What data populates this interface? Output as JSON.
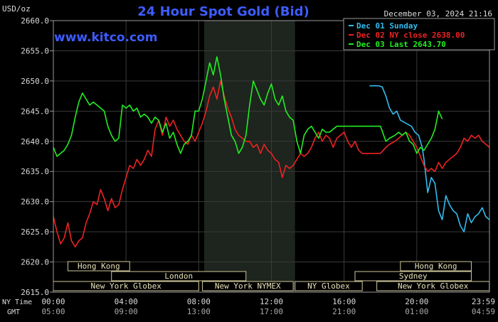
{
  "chart_data": {
    "type": "line",
    "title": "24 Hour Spot Gold (Bid)",
    "unit_label": "USD/oz",
    "timestamp": "December 03, 2024 21:16",
    "watermark": "www.kitco.com",
    "ylim": [
      2615.0,
      2660.0
    ],
    "y_ticks": [
      "2660.0",
      "2655.0",
      "2650.0",
      "2645.0",
      "2640.0",
      "2635.0",
      "2630.0",
      "2625.0",
      "2620.0",
      "2615.0"
    ],
    "x_range_hours": [
      0,
      24
    ],
    "x_ticks": [
      {
        "h": 0,
        "ny": "00:00",
        "gmt": "05:00"
      },
      {
        "h": 4,
        "ny": "04:00",
        "gmt": "09:00"
      },
      {
        "h": 8,
        "ny": "08:00",
        "gmt": "13:00"
      },
      {
        "h": 12,
        "ny": "12:00",
        "gmt": "17:00"
      },
      {
        "h": 16,
        "ny": "16:00",
        "gmt": "21:00"
      },
      {
        "h": 20,
        "ny": "20:00",
        "gmt": "01:00"
      },
      {
        "h": 24,
        "ny": "23:59",
        "gmt": "04:59"
      }
    ],
    "x_row_labels": {
      "ny": "NY Time",
      "gmt": "GMT"
    },
    "highlight_band_hours": [
      8.3,
      13.3
    ],
    "grid": true,
    "legend_position": "top-right",
    "legend": [
      {
        "label": "Dec 01 Sunday",
        "color": "#33bbee"
      },
      {
        "label": "Dec 02 NY close 2638.00",
        "color": "#ee2222"
      },
      {
        "label": "Dec 03 Last 2643.70",
        "color": "#22ee22"
      }
    ],
    "sessions": [
      {
        "label": "Hong Kong",
        "start": 0.8,
        "end": 4.2,
        "row": 0
      },
      {
        "label": "Hong Kong",
        "start": 19.1,
        "end": 23.0,
        "row": 0
      },
      {
        "label": "London",
        "start": 3.2,
        "end": 10.6,
        "row": 1
      },
      {
        "label": "Sydney",
        "start": 16.6,
        "end": 23.0,
        "row": 1
      },
      {
        "label": "New York Globex",
        "start": 0.0,
        "end": 8.0,
        "row": 2
      },
      {
        "label": "New York NYMEX",
        "start": 8.2,
        "end": 13.2,
        "row": 2
      },
      {
        "label": "NY Globex",
        "start": 13.3,
        "end": 17.0,
        "row": 2
      },
      {
        "label": "New York Globex",
        "start": 17.8,
        "end": 23.99,
        "row": 2
      }
    ],
    "series": [
      {
        "name": "Dec 01 Sunday",
        "color": "#33bbee",
        "x": [
          17.4,
          17.9,
          18.1,
          18.3,
          18.5,
          18.7,
          18.9,
          19.1,
          19.4,
          19.7,
          19.9,
          20.1,
          20.3,
          20.4,
          20.6,
          20.8,
          21.0,
          21.2,
          21.4,
          21.6,
          21.8,
          22.0,
          22.2,
          22.4,
          22.6,
          22.8,
          23.0,
          23.2,
          23.4,
          23.6,
          23.8,
          24.0
        ],
        "y": [
          2649.2,
          2649.2,
          2649.0,
          2647.5,
          2645.5,
          2644.5,
          2645.0,
          2643.5,
          2643.0,
          2642.5,
          2641.5,
          2641.0,
          2639.0,
          2637.0,
          2631.5,
          2634.0,
          2633.0,
          2628.5,
          2627.0,
          2631.0,
          2629.5,
          2628.5,
          2628.0,
          2626.0,
          2625.0,
          2628.0,
          2626.5,
          2627.5,
          2628.0,
          2629.0,
          2627.5,
          2627.0
        ]
      },
      {
        "name": "Dec 02 NY close 2638.00",
        "color": "#ee2222",
        "x": [
          0.0,
          0.2,
          0.4,
          0.6,
          0.8,
          1.0,
          1.2,
          1.4,
          1.6,
          1.8,
          2.0,
          2.2,
          2.4,
          2.6,
          2.8,
          3.0,
          3.2,
          3.4,
          3.6,
          3.8,
          4.0,
          4.2,
          4.4,
          4.6,
          4.8,
          5.0,
          5.2,
          5.4,
          5.6,
          5.8,
          6.0,
          6.2,
          6.4,
          6.6,
          6.8,
          7.0,
          7.2,
          7.4,
          7.6,
          7.8,
          8.0,
          8.2,
          8.4,
          8.6,
          8.8,
          9.0,
          9.2,
          9.4,
          9.6,
          9.8,
          10.0,
          10.2,
          10.4,
          10.6,
          10.8,
          11.0,
          11.2,
          11.4,
          11.6,
          11.8,
          12.0,
          12.2,
          12.4,
          12.6,
          12.8,
          13.0,
          13.2,
          13.4,
          13.6,
          13.8,
          14.0,
          14.2,
          14.4,
          14.6,
          14.8,
          15.0,
          15.2,
          15.4,
          15.6,
          15.8,
          16.0,
          16.2,
          16.4,
          16.6,
          16.8,
          17.0,
          17.5,
          18.0,
          18.3,
          18.5,
          18.8,
          19.0,
          19.2,
          19.4,
          19.6,
          19.8,
          20.0,
          20.2,
          20.4,
          20.6,
          20.8,
          21.0,
          21.2,
          21.4,
          21.6,
          21.8,
          22.0,
          22.2,
          22.4,
          22.6,
          22.8,
          23.0,
          23.2,
          23.4,
          23.6,
          23.8,
          24.0
        ],
        "y": [
          2627.5,
          2625.0,
          2623.0,
          2624.0,
          2626.5,
          2623.5,
          2622.5,
          2623.5,
          2624.0,
          2626.5,
          2628.0,
          2630.0,
          2629.5,
          2632.0,
          2630.5,
          2628.5,
          2630.5,
          2629.0,
          2629.5,
          2632.0,
          2634.0,
          2636.0,
          2635.5,
          2637.0,
          2636.0,
          2637.0,
          2638.5,
          2637.5,
          2642.0,
          2643.5,
          2641.0,
          2644.0,
          2642.5,
          2643.5,
          2642.0,
          2641.0,
          2640.0,
          2639.5,
          2641.0,
          2640.0,
          2641.5,
          2643.0,
          2645.0,
          2647.5,
          2649.0,
          2647.0,
          2650.0,
          2647.5,
          2645.5,
          2644.0,
          2642.0,
          2641.0,
          2640.5,
          2640.0,
          2640.0,
          2639.0,
          2639.5,
          2638.0,
          2639.5,
          2638.5,
          2638.0,
          2637.0,
          2636.5,
          2634.0,
          2636.0,
          2635.5,
          2636.0,
          2637.0,
          2638.0,
          2637.5,
          2638.0,
          2639.0,
          2640.5,
          2641.5,
          2640.0,
          2641.0,
          2640.5,
          2639.0,
          2640.5,
          2641.0,
          2641.5,
          2640.0,
          2639.0,
          2640.0,
          2638.5,
          2638.0,
          2638.0,
          2638.0,
          2639.0,
          2639.5,
          2640.0,
          2640.5,
          2641.0,
          2641.5,
          2641.0,
          2640.0,
          2639.0,
          2637.5,
          2636.0,
          2635.0,
          2635.5,
          2635.0,
          2636.5,
          2635.5,
          2636.5,
          2637.0,
          2637.5,
          2638.0,
          2639.0,
          2640.5,
          2640.0,
          2641.0,
          2640.5,
          2641.0,
          2640.0,
          2639.5,
          2639.0
        ]
      },
      {
        "name": "Dec 03 Last 2643.70",
        "color": "#22ee22",
        "x": [
          0.0,
          0.2,
          0.4,
          0.6,
          0.8,
          1.0,
          1.2,
          1.4,
          1.6,
          1.8,
          2.0,
          2.2,
          2.4,
          2.6,
          2.8,
          3.0,
          3.2,
          3.4,
          3.6,
          3.8,
          4.0,
          4.2,
          4.4,
          4.6,
          4.8,
          5.0,
          5.2,
          5.4,
          5.6,
          5.8,
          6.0,
          6.2,
          6.4,
          6.6,
          6.8,
          7.0,
          7.2,
          7.4,
          7.6,
          7.8,
          8.0,
          8.2,
          8.4,
          8.6,
          8.8,
          9.0,
          9.2,
          9.4,
          9.6,
          9.8,
          10.0,
          10.2,
          10.4,
          10.6,
          10.8,
          11.0,
          11.2,
          11.4,
          11.6,
          11.8,
          12.0,
          12.2,
          12.4,
          12.6,
          12.8,
          13.0,
          13.2,
          13.4,
          13.6,
          13.8,
          14.0,
          14.2,
          14.4,
          14.6,
          14.8,
          15.0,
          15.2,
          15.4,
          15.6,
          15.8,
          16.0,
          16.2,
          16.4,
          16.6,
          16.8,
          17.0,
          17.5,
          18.0,
          18.3,
          18.5,
          18.8,
          19.0,
          19.2,
          19.4,
          19.6,
          19.8,
          20.0,
          20.2,
          20.4,
          20.6,
          20.8,
          21.0,
          21.2,
          21.4
        ],
        "y": [
          2639.0,
          2637.5,
          2638.0,
          2638.5,
          2639.5,
          2641.0,
          2644.0,
          2646.5,
          2648.0,
          2647.0,
          2646.0,
          2646.5,
          2646.0,
          2645.5,
          2645.0,
          2642.5,
          2641.0,
          2640.0,
          2640.5,
          2646.0,
          2645.5,
          2646.0,
          2645.0,
          2645.5,
          2644.0,
          2644.5,
          2644.0,
          2643.0,
          2644.0,
          2643.5,
          2641.5,
          2643.0,
          2640.5,
          2641.5,
          2639.5,
          2638.0,
          2639.5,
          2640.0,
          2641.0,
          2645.0,
          2645.0,
          2647.0,
          2650.0,
          2653.0,
          2651.0,
          2654.0,
          2651.0,
          2647.0,
          2644.0,
          2641.0,
          2640.0,
          2638.0,
          2639.0,
          2641.0,
          2646.0,
          2650.0,
          2648.5,
          2647.0,
          2646.0,
          2648.0,
          2649.5,
          2647.0,
          2646.0,
          2647.5,
          2645.0,
          2644.0,
          2643.5,
          2640.0,
          2638.0,
          2641.0,
          2642.0,
          2642.5,
          2641.5,
          2640.5,
          2642.0,
          2641.5,
          2641.5,
          2642.0,
          2642.5,
          2642.5,
          2642.5,
          2642.5,
          2642.5,
          2642.5,
          2642.5,
          2642.5,
          2642.5,
          2642.5,
          2640.0,
          2640.5,
          2641.0,
          2641.5,
          2641.0,
          2641.5,
          2640.0,
          2639.5,
          2638.0,
          2639.0,
          2638.5,
          2639.5,
          2640.5,
          2642.0,
          2645.0,
          2643.7
        ]
      }
    ]
  }
}
